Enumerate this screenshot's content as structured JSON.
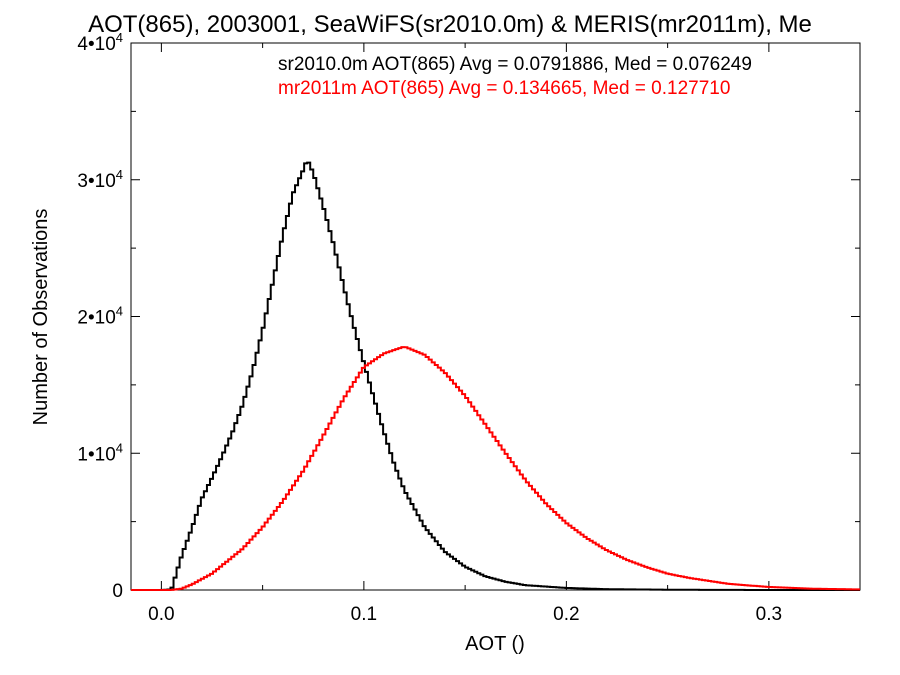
{
  "chart_data": {
    "type": "line",
    "step": true,
    "title": "AOT(865), 2003001, SeaWiFS(sr2010.0m) & MERIS(mr2011m), Me",
    "xlabel": "AOT ()",
    "ylabel": "Number of Observations",
    "xlim": [
      -0.015,
      0.345
    ],
    "ylim": [
      0,
      40000
    ],
    "grid": false,
    "x_ticks": [
      {
        "value": 0.0,
        "label": "0.0"
      },
      {
        "value": 0.1,
        "label": "0.1"
      },
      {
        "value": 0.2,
        "label": "0.2"
      },
      {
        "value": 0.3,
        "label": "0.3"
      }
    ],
    "y_ticks": [
      {
        "value": 0,
        "label": "0"
      },
      {
        "value": 10000,
        "base": "1•10",
        "exp": "4"
      },
      {
        "value": 20000,
        "base": "2•10",
        "exp": "4"
      },
      {
        "value": 30000,
        "base": "3•10",
        "exp": "4"
      },
      {
        "value": 40000,
        "base": "4•10",
        "exp": "4"
      }
    ],
    "annotations": [
      {
        "text": "sr2010.0m AOT(865) Avg = 0.0791886, Med = 0.076249",
        "color": "#000000"
      },
      {
        "text": "mr2011m AOT(865) Avg = 0.134665, Med = 0.127710",
        "color": "#ff0000"
      }
    ],
    "series": [
      {
        "color": "#000000",
        "x": [
          -0.015,
          0.0,
          0.005,
          0.01,
          0.015,
          0.02,
          0.025,
          0.03,
          0.035,
          0.04,
          0.045,
          0.05,
          0.055,
          0.06,
          0.065,
          0.07,
          0.072,
          0.075,
          0.08,
          0.085,
          0.09,
          0.095,
          0.1,
          0.105,
          0.11,
          0.115,
          0.12,
          0.13,
          0.14,
          0.15,
          0.16,
          0.17,
          0.18,
          0.2,
          0.22,
          0.25,
          0.3,
          0.345
        ],
        "values": [
          0,
          0,
          50,
          2500,
          4500,
          6700,
          8200,
          9800,
          11500,
          13500,
          16000,
          19000,
          22500,
          26000,
          29000,
          30700,
          31500,
          30500,
          28000,
          25300,
          22200,
          19300,
          16600,
          14000,
          11500,
          9200,
          7300,
          4600,
          2800,
          1700,
          1000,
          600,
          350,
          150,
          60,
          20,
          0,
          0
        ]
      },
      {
        "color": "#ff0000",
        "x": [
          -0.015,
          0.0,
          0.005,
          0.01,
          0.015,
          0.02,
          0.025,
          0.03,
          0.04,
          0.05,
          0.06,
          0.07,
          0.08,
          0.09,
          0.1,
          0.11,
          0.12,
          0.13,
          0.14,
          0.15,
          0.16,
          0.17,
          0.18,
          0.19,
          0.2,
          0.21,
          0.22,
          0.23,
          0.24,
          0.25,
          0.26,
          0.28,
          0.3,
          0.32,
          0.345
        ],
        "values": [
          0,
          0,
          0,
          100,
          400,
          800,
          1200,
          1800,
          3000,
          4600,
          6500,
          8700,
          11300,
          14000,
          16300,
          17300,
          17800,
          17200,
          15900,
          14200,
          12100,
          10000,
          8000,
          6300,
          4900,
          3800,
          2900,
          2200,
          1650,
          1200,
          900,
          450,
          220,
          100,
          40
        ]
      }
    ]
  }
}
